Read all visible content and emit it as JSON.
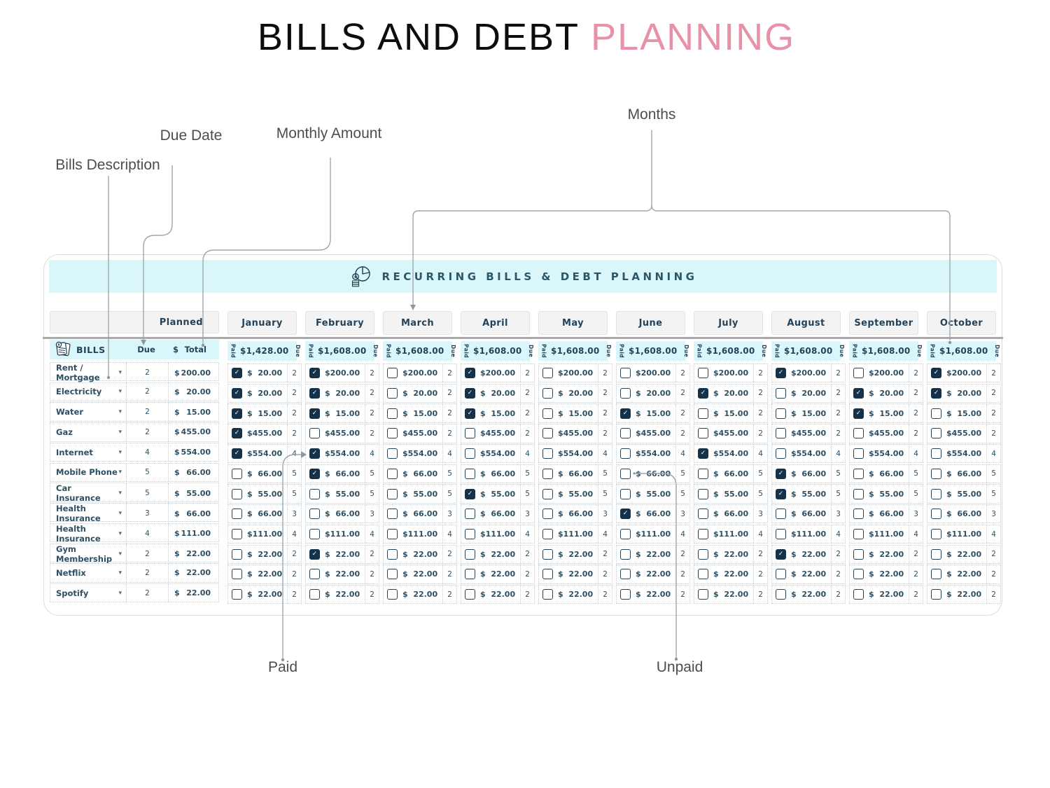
{
  "title": {
    "black": "BILLS AND DEBT ",
    "pink": "PLANNING"
  },
  "annotations": {
    "bills_description": "Bills Description",
    "due_date": "Due Date",
    "monthly_amount": "Monthly Amount",
    "months": "Months",
    "paid": "Paid",
    "unpaid": "Unpaid"
  },
  "banner": {
    "title": "RECURRING BILLS & DEBT PLANNING",
    "icon": "pie-chart-coins-icon"
  },
  "left_panel": {
    "planned_label": "Planned",
    "bills_label": "BILLS",
    "bills_icon": "receipts-icon",
    "due_label": "Due",
    "currency": "$",
    "total_label": "Total"
  },
  "column_labels": {
    "paid": "Paid",
    "due": "Due",
    "currency": "$"
  },
  "colors": {
    "accent_cyan": "#d9f7fa",
    "navy_text": "#2e4f63",
    "checkbox_navy": "#15324a",
    "pink_accent": "#e892a8",
    "divider_gray": "#a7a9aa"
  },
  "bills": [
    {
      "name": "Rent / Mortgage",
      "due": "2",
      "planned": "200.00"
    },
    {
      "name": "Electricity",
      "due": "2",
      "planned": "20.00"
    },
    {
      "name": "Water",
      "due": "2",
      "planned": "15.00"
    },
    {
      "name": "Gaz",
      "due": "2",
      "planned": "455.00"
    },
    {
      "name": "Internet",
      "due": "4",
      "planned": "554.00"
    },
    {
      "name": "Mobile Phone",
      "due": "5",
      "planned": "66.00"
    },
    {
      "name": "Car Insurance",
      "due": "5",
      "planned": "55.00"
    },
    {
      "name": "Health Insurance",
      "due": "3",
      "planned": "66.00"
    },
    {
      "name": "Health Insurance",
      "due": "4",
      "planned": "111.00"
    },
    {
      "name": "Gym Membership",
      "due": "2",
      "planned": "22.00"
    },
    {
      "name": "Netflix",
      "due": "2",
      "planned": "22.00"
    },
    {
      "name": "Spotify",
      "due": "2",
      "planned": "22.00"
    }
  ],
  "months": [
    {
      "label": "January",
      "total": "1,428.00",
      "amounts": [
        "20.00",
        "20.00",
        "15.00",
        "455.00",
        "554.00",
        "66.00",
        "55.00",
        "66.00",
        "111.00",
        "22.00",
        "22.00",
        "22.00"
      ],
      "paid": [
        true,
        true,
        true,
        true,
        true,
        false,
        false,
        false,
        false,
        false,
        false,
        false
      ]
    },
    {
      "label": "February",
      "total": "1,608.00",
      "amounts": [
        "200.00",
        "20.00",
        "15.00",
        "455.00",
        "554.00",
        "66.00",
        "55.00",
        "66.00",
        "111.00",
        "22.00",
        "22.00",
        "22.00"
      ],
      "paid": [
        true,
        true,
        true,
        false,
        true,
        true,
        false,
        false,
        false,
        true,
        false,
        false
      ]
    },
    {
      "label": "March",
      "total": "1,608.00",
      "amounts": [
        "200.00",
        "20.00",
        "15.00",
        "455.00",
        "554.00",
        "66.00",
        "55.00",
        "66.00",
        "111.00",
        "22.00",
        "22.00",
        "22.00"
      ],
      "paid": [
        false,
        false,
        false,
        false,
        false,
        false,
        false,
        false,
        false,
        false,
        false,
        false
      ]
    },
    {
      "label": "April",
      "total": "1,608.00",
      "amounts": [
        "200.00",
        "20.00",
        "15.00",
        "455.00",
        "554.00",
        "66.00",
        "55.00",
        "66.00",
        "111.00",
        "22.00",
        "22.00",
        "22.00"
      ],
      "paid": [
        true,
        true,
        true,
        false,
        false,
        false,
        true,
        false,
        false,
        false,
        false,
        false
      ]
    },
    {
      "label": "May",
      "total": "1,608.00",
      "amounts": [
        "200.00",
        "20.00",
        "15.00",
        "455.00",
        "554.00",
        "66.00",
        "55.00",
        "66.00",
        "111.00",
        "22.00",
        "22.00",
        "22.00"
      ],
      "paid": [
        false,
        false,
        false,
        false,
        false,
        false,
        false,
        false,
        false,
        false,
        false,
        false
      ]
    },
    {
      "label": "June",
      "total": "1,608.00",
      "amounts": [
        "200.00",
        "20.00",
        "15.00",
        "455.00",
        "554.00",
        "66.00",
        "55.00",
        "66.00",
        "111.00",
        "22.00",
        "22.00",
        "22.00"
      ],
      "paid": [
        false,
        false,
        true,
        false,
        false,
        false,
        false,
        true,
        false,
        false,
        false,
        false
      ]
    },
    {
      "label": "July",
      "total": "1,608.00",
      "amounts": [
        "200.00",
        "20.00",
        "15.00",
        "455.00",
        "554.00",
        "66.00",
        "55.00",
        "66.00",
        "111.00",
        "22.00",
        "22.00",
        "22.00"
      ],
      "paid": [
        false,
        true,
        false,
        false,
        true,
        false,
        false,
        false,
        false,
        false,
        false,
        false
      ]
    },
    {
      "label": "August",
      "total": "1,608.00",
      "amounts": [
        "200.00",
        "20.00",
        "15.00",
        "455.00",
        "554.00",
        "66.00",
        "55.00",
        "66.00",
        "111.00",
        "22.00",
        "22.00",
        "22.00"
      ],
      "paid": [
        true,
        false,
        false,
        false,
        false,
        true,
        true,
        false,
        false,
        true,
        false,
        false
      ]
    },
    {
      "label": "September",
      "total": "1,608.00",
      "amounts": [
        "200.00",
        "20.00",
        "15.00",
        "455.00",
        "554.00",
        "66.00",
        "55.00",
        "66.00",
        "111.00",
        "22.00",
        "22.00",
        "22.00"
      ],
      "paid": [
        false,
        true,
        true,
        false,
        false,
        false,
        false,
        false,
        false,
        false,
        false,
        false
      ]
    },
    {
      "label": "October",
      "total": "1,608.00",
      "amounts": [
        "200.00",
        "20.00",
        "15.00",
        "455.00",
        "554.00",
        "66.00",
        "55.00",
        "66.00",
        "111.00",
        "22.00",
        "22.00",
        "22.00"
      ],
      "paid": [
        true,
        true,
        false,
        false,
        false,
        false,
        false,
        false,
        false,
        false,
        false,
        false
      ]
    }
  ]
}
